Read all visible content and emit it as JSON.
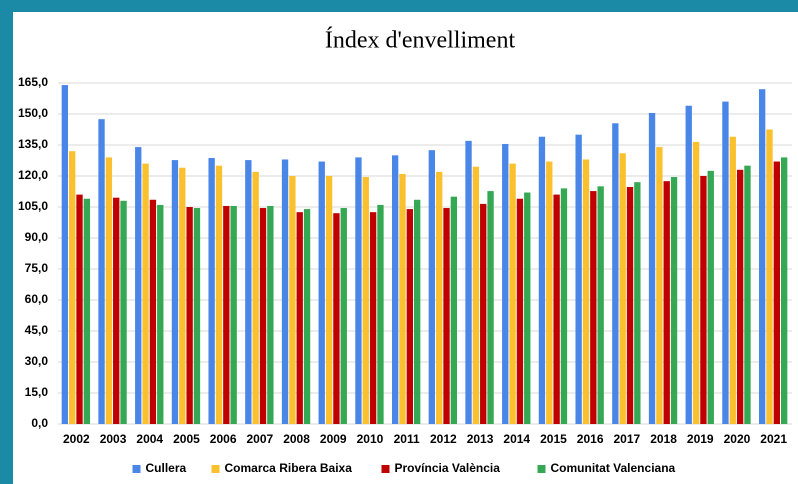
{
  "chart_data": {
    "type": "bar",
    "title": "Índex d'envelliment",
    "categories": [
      "2002",
      "2003",
      "2004",
      "2005",
      "2006",
      "2007",
      "2008",
      "2009",
      "2010",
      "2011",
      "2012",
      "2013",
      "2014",
      "2015",
      "2016",
      "2017",
      "2018",
      "2019",
      "2020",
      "2021"
    ],
    "series": [
      {
        "name": "Cullera",
        "color": "#4a86e8",
        "values": [
          164,
          147.5,
          134,
          127.7,
          128.7,
          127.7,
          128,
          127,
          129,
          130,
          132.5,
          137,
          135.5,
          139,
          140,
          145.5,
          150.5,
          154,
          156,
          162
        ]
      },
      {
        "name": "Comarca Ribera Baixa",
        "color": "#fbc02d",
        "values": [
          132,
          129,
          126,
          124,
          125,
          122,
          120,
          120,
          119.5,
          121,
          122,
          124.5,
          126,
          127,
          128,
          131,
          134,
          136.5,
          139,
          142.5
        ]
      },
      {
        "name": "Província València",
        "color": "#c00000",
        "values": [
          111,
          109.5,
          108.5,
          105,
          105.5,
          104.5,
          102.5,
          102,
          102.5,
          104,
          104.5,
          106.5,
          109,
          111,
          112.7,
          114.7,
          117.5,
          120,
          123,
          127
        ]
      },
      {
        "name": "Comunitat Valenciana",
        "color": "#34a853",
        "values": [
          109,
          108,
          106,
          104.5,
          105.5,
          105.5,
          104,
          104.5,
          106,
          108.5,
          110,
          112.7,
          112,
          114,
          115,
          117,
          119.5,
          122.5,
          125,
          129
        ]
      }
    ],
    "ylim": [
      0,
      165
    ],
    "yticks": [
      {
        "value": 0,
        "label": "0,0"
      },
      {
        "value": 15,
        "label": "15,0"
      },
      {
        "value": 30,
        "label": "30,0"
      },
      {
        "value": 45,
        "label": "45,0"
      },
      {
        "value": 60,
        "label": "60,0"
      },
      {
        "value": 75,
        "label": "75,0"
      },
      {
        "value": 90,
        "label": "90,0"
      },
      {
        "value": 105,
        "label": "105,0"
      },
      {
        "value": 120,
        "label": "120,0"
      },
      {
        "value": 135,
        "label": "135,0"
      },
      {
        "value": 150,
        "label": "150,0"
      },
      {
        "value": 165,
        "label": "165,0"
      }
    ],
    "grid": true,
    "legend": "bottom"
  }
}
